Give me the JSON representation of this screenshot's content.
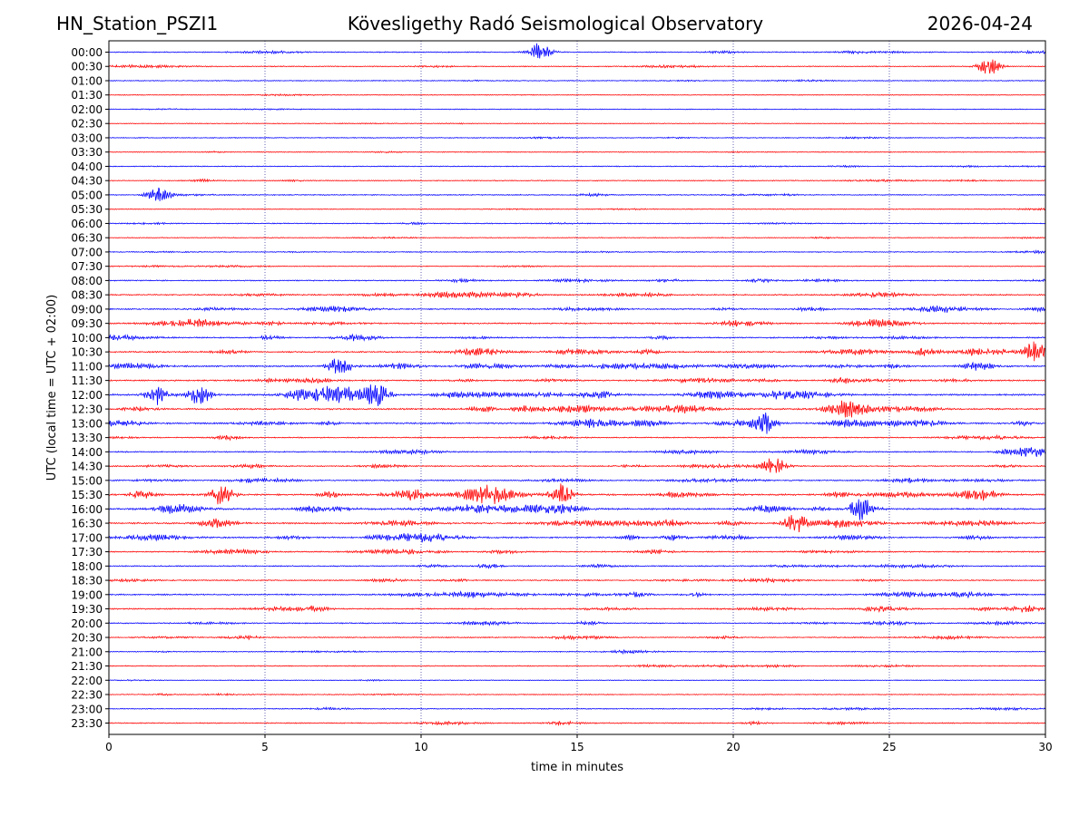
{
  "header": {
    "station": "HN_Station_PSZI1",
    "observatory": "Kövesligethy Radó Seismological Observatory",
    "date": "2026-04-24"
  },
  "chart_data": {
    "type": "line",
    "title": "Kövesligethy Radó Seismological Observatory",
    "xlabel": "time in minutes",
    "ylabel": "UTC (local time = UTC + 02:00)",
    "xlim": [
      0,
      30
    ],
    "xticks": [
      0,
      5,
      10,
      15,
      20,
      25,
      30
    ],
    "grid": "vertical dotted at each 5-minute tick",
    "row_labels": [
      "00:00",
      "00:30",
      "01:00",
      "01:30",
      "02:00",
      "02:30",
      "03:00",
      "03:30",
      "04:00",
      "04:30",
      "05:00",
      "05:30",
      "06:00",
      "06:30",
      "07:00",
      "07:30",
      "08:00",
      "08:30",
      "09:00",
      "09:30",
      "10:00",
      "10:30",
      "11:00",
      "11:30",
      "12:00",
      "12:30",
      "13:00",
      "13:30",
      "14:00",
      "14:30",
      "15:00",
      "15:30",
      "16:00",
      "16:30",
      "17:00",
      "17:30",
      "18:00",
      "18:30",
      "19:00",
      "19:30",
      "20:00",
      "20:30",
      "21:00",
      "21:30",
      "22:00",
      "22:30",
      "23:00",
      "23:30"
    ],
    "colors": [
      "#0000ff",
      "#ff0000"
    ],
    "activity_levels": [
      0.35,
      0.3,
      0.2,
      0.15,
      0.12,
      0.12,
      0.2,
      0.18,
      0.25,
      0.3,
      0.3,
      0.2,
      0.3,
      0.2,
      0.25,
      0.2,
      0.45,
      0.6,
      0.65,
      0.7,
      0.6,
      0.7,
      0.75,
      0.65,
      0.9,
      0.85,
      0.85,
      0.4,
      0.5,
      0.5,
      0.55,
      0.95,
      0.9,
      0.85,
      0.75,
      0.5,
      0.5,
      0.45,
      0.65,
      0.6,
      0.45,
      0.4,
      0.3,
      0.3,
      0.15,
      0.2,
      0.3,
      0.35
    ],
    "events": [
      {
        "row": "00:00",
        "minute": 13.8
      },
      {
        "row": "00:30",
        "minute": 28.2
      },
      {
        "row": "05:00",
        "minute": 1.6
      },
      {
        "row": "11:00",
        "minute": 7.4
      },
      {
        "row": "12:00",
        "minute": 1.6
      },
      {
        "row": "12:00",
        "minute": 2.9
      },
      {
        "row": "12:00",
        "minute": 8.6
      },
      {
        "row": "13:00",
        "minute": 21.0
      },
      {
        "row": "14:30",
        "minute": 21.3
      },
      {
        "row": "15:30",
        "minute": 3.6
      },
      {
        "row": "15:30",
        "minute": 14.5
      },
      {
        "row": "16:00",
        "minute": 24.1
      },
      {
        "row": "16:30",
        "minute": 22.0
      },
      {
        "row": "10:30",
        "minute": 29.7
      }
    ]
  }
}
